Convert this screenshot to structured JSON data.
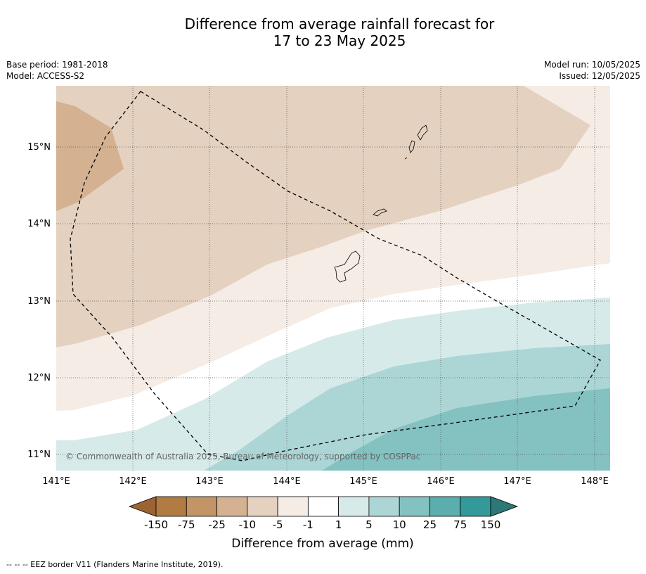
{
  "title_line1": "Difference from average rainfall forecast for",
  "title_line2": "17 to 23 May 2025",
  "base_period": "Base period: 1981-2018",
  "model": "Model: ACCESS-S2",
  "model_run": "Model run: 10/05/2025",
  "issued": "Issued: 12/05/2025",
  "copyright": "© Commonwealth of Australia 2025, Bureau of Meteorology, supported by COSPPac",
  "lat_labels": [
    "15°N",
    "14°N",
    "13°N",
    "12°N",
    "11°N"
  ],
  "lon_labels": [
    "141°E",
    "142°E",
    "143°E",
    "144°E",
    "145°E",
    "146°E",
    "147°E",
    "148°E"
  ],
  "colorbar": {
    "ticks": [
      "-150",
      "-75",
      "-25",
      "-10",
      "-5",
      "-1",
      "1",
      "5",
      "10",
      "25",
      "75",
      "150"
    ],
    "colors": [
      "#9d6433",
      "#b27b42",
      "#c29466",
      "#d3b191",
      "#e4d1bf",
      "#f5ece6",
      "#ffffff",
      "#d6eae9",
      "#acd6d6",
      "#84c1c1",
      "#5aaeae",
      "#349999",
      "#2c7876"
    ],
    "label": "Difference from average (mm)"
  },
  "legend_footer": "--  --  -- EEZ border V11 (Flanders Marine Institute, 2019).",
  "map_colors": {
    "dark_brown": "#d3b191",
    "brown": "#e4d1bf",
    "light_brown": "#f5ece6",
    "white": "#ffffff",
    "light_teal": "#d6eae9",
    "teal": "#acd6d6",
    "mid_teal": "#84c1c1"
  }
}
